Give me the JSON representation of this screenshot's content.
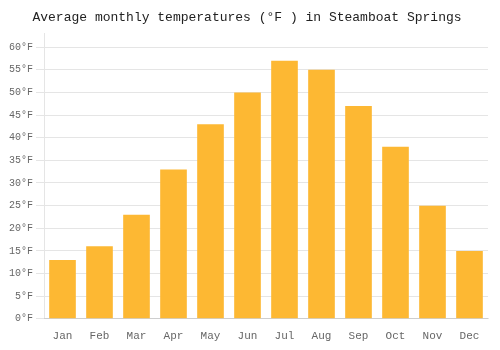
{
  "chart_data": {
    "type": "bar",
    "title": "Average monthly temperatures (°F ) in Steamboat Springs",
    "categories": [
      "Jan",
      "Feb",
      "Mar",
      "Apr",
      "May",
      "Jun",
      "Jul",
      "Aug",
      "Sep",
      "Oct",
      "Nov",
      "Dec"
    ],
    "values": [
      13,
      16,
      23,
      33,
      43,
      50,
      57,
      55,
      47,
      38,
      25,
      15
    ],
    "color": "#FDB833",
    "ylim": [
      0,
      63
    ],
    "yticks": [
      {
        "value": 0,
        "label": "0°F"
      },
      {
        "value": 5,
        "label": "5°F"
      },
      {
        "value": 10,
        "label": "10°F"
      },
      {
        "value": 15,
        "label": "15°F"
      },
      {
        "value": 20,
        "label": "20°F"
      },
      {
        "value": 25,
        "label": "25°F"
      },
      {
        "value": 30,
        "label": "30°F"
      },
      {
        "value": 35,
        "label": "35°F"
      },
      {
        "value": 40,
        "label": "40°F"
      },
      {
        "value": 45,
        "label": "45°F"
      },
      {
        "value": 50,
        "label": "50°F"
      },
      {
        "value": 55,
        "label": "55°F"
      },
      {
        "value": 60,
        "label": "60°F"
      }
    ],
    "grid": true
  }
}
